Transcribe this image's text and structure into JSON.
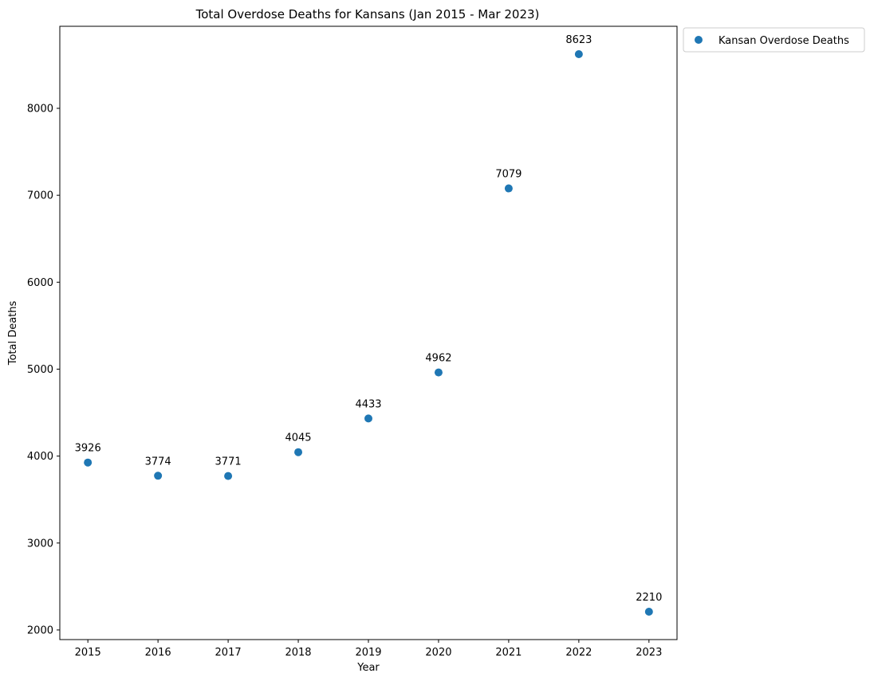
{
  "chart_data": {
    "type": "scatter",
    "title": "Total Overdose Deaths for Kansans (Jan 2015 - Mar 2023)",
    "xlabel": "Year",
    "ylabel": "Total Deaths",
    "x": [
      2015,
      2016,
      2017,
      2018,
      2019,
      2020,
      2021,
      2022,
      2023
    ],
    "series": [
      {
        "name": "Kansan Overdose Deaths",
        "color": "#1f77b4",
        "values": [
          3926,
          3774,
          3771,
          4045,
          4433,
          4962,
          7079,
          8623,
          2210
        ]
      }
    ],
    "data_labels": [
      "3926",
      "3774",
      "3771",
      "4045",
      "4433",
      "4962",
      "7079",
      "8623",
      "2210"
    ],
    "xticks": [
      "2015",
      "2016",
      "2017",
      "2018",
      "2019",
      "2020",
      "2021",
      "2022",
      "2023"
    ],
    "yticks": [
      "2000",
      "3000",
      "4000",
      "5000",
      "6000",
      "7000",
      "8000"
    ],
    "xlim": [
      2014.6,
      2023.4
    ],
    "ylim": [
      1889.35,
      8943.65
    ],
    "grid": false,
    "legend_position": "outside top-right"
  }
}
